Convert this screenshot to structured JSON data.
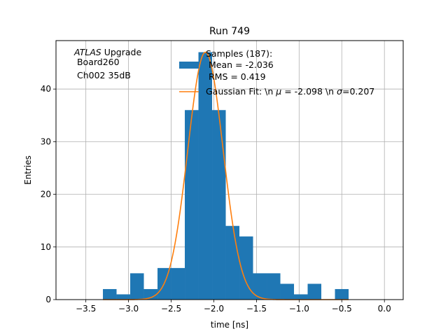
{
  "chart_data": {
    "type": "bar",
    "title": "Run 749",
    "xlabel": "time [ns]",
    "ylabel": "Entries",
    "xlim": [
      -3.85,
      0.22
    ],
    "ylim": [
      0,
      49.2
    ],
    "grid": true,
    "xticks": [
      -3.5,
      -3.0,
      -2.5,
      -2.0,
      -1.5,
      -1.0,
      -0.5,
      0.0
    ],
    "xtick_labels": [
      "−3.5",
      "−3.0",
      "−2.5",
      "−2.0",
      "−1.5",
      "−1.0",
      "−0.5",
      "0.0"
    ],
    "yticks": [
      0,
      10,
      20,
      30,
      40
    ],
    "ytick_labels": [
      "0",
      "10",
      "20",
      "30",
      "40"
    ],
    "bin_width": 0.16,
    "bins": [
      {
        "x0": -3.3,
        "count": 2
      },
      {
        "x0": -3.14,
        "count": 1
      },
      {
        "x0": -2.98,
        "count": 5
      },
      {
        "x0": -2.82,
        "count": 2
      },
      {
        "x0": -2.66,
        "count": 6
      },
      {
        "x0": -2.5,
        "count": 6
      },
      {
        "x0": -2.34,
        "count": 36
      },
      {
        "x0": -2.18,
        "count": 47
      },
      {
        "x0": -2.02,
        "count": 36
      },
      {
        "x0": -1.86,
        "count": 14
      },
      {
        "x0": -1.7,
        "count": 12
      },
      {
        "x0": -1.54,
        "count": 5
      },
      {
        "x0": -1.38,
        "count": 5
      },
      {
        "x0": -1.22,
        "count": 3
      },
      {
        "x0": -1.06,
        "count": 1
      },
      {
        "x0": -0.9,
        "count": 3
      },
      {
        "x0": -0.74,
        "count": 0
      },
      {
        "x0": -0.58,
        "count": 2
      }
    ],
    "fit": {
      "mu": -2.098,
      "sigma": 0.207,
      "amplitude": 47.0,
      "range": [
        -3.3,
        -0.42
      ]
    },
    "colors": {
      "hist": "#1f77b4",
      "fit": "#ff7f0e",
      "grid": "#b0b0b0"
    },
    "annotation": {
      "line1_italic": "ATLAS",
      "line1_rest": " Upgrade",
      "line2": " Board260",
      "line3": " Ch002 35dB"
    },
    "legend": {
      "hist_lines": [
        "Samples (187):",
        " Mean = -2.036",
        " RMS = 0.419"
      ],
      "fit_label": "Gaussian Fit: \\n μ = -2.098 \\n σ=0.207",
      "fit_label_parts": {
        "prefix": "Gaussian Fit: \\n ",
        "mu_sym": "μ",
        "mid": " = -2.098 \\n ",
        "sigma_sym": "σ",
        "suffix": "=0.207"
      },
      "position": "upper-center"
    }
  }
}
